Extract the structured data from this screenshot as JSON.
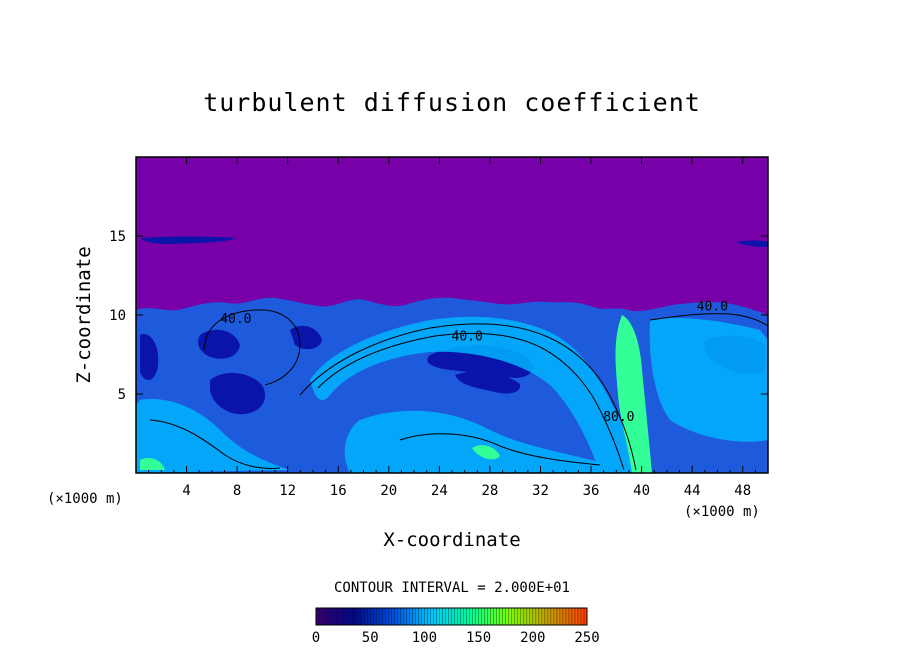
{
  "chart_data": {
    "type": "heatmap",
    "title": "turbulent diffusion coefficient",
    "xlabel": "X-coordinate",
    "ylabel": "Z-coordinate",
    "x_unit_left": "(×1000 m)",
    "x_unit_right": "(×1000 m)",
    "xlim": [
      0,
      50
    ],
    "ylim": [
      0,
      20
    ],
    "x_ticks": [
      4,
      8,
      12,
      16,
      20,
      24,
      28,
      32,
      36,
      40,
      44,
      48
    ],
    "y_ticks": [
      5,
      10,
      15
    ],
    "contour_interval_text": "CONTOUR INTERVAL = 2.000E+01",
    "contour_labels": [
      {
        "text": "40.0",
        "x": 7.9,
        "z": 9.5
      },
      {
        "text": "40.0",
        "x": 26.2,
        "z": 8.4
      },
      {
        "text": "80.0",
        "x": 38.2,
        "z": 3.3
      },
      {
        "text": "40.0",
        "x": 45.6,
        "z": 10.3
      }
    ],
    "colorbar": {
      "min": 0,
      "max": 250,
      "ticks": [
        0,
        50,
        100,
        150,
        200,
        250
      ],
      "colors": [
        "#3a0075",
        "#000a8c",
        "#0050e0",
        "#00c8ff",
        "#00ff96",
        "#7dff00",
        "#c8a000",
        "#ff3c00"
      ]
    },
    "field_colors": {
      "background": "#7800a8",
      "low": "#0a14aa",
      "mid": "#1e5adc",
      "high": "#00b4ff",
      "peak": "#33ff99"
    }
  }
}
